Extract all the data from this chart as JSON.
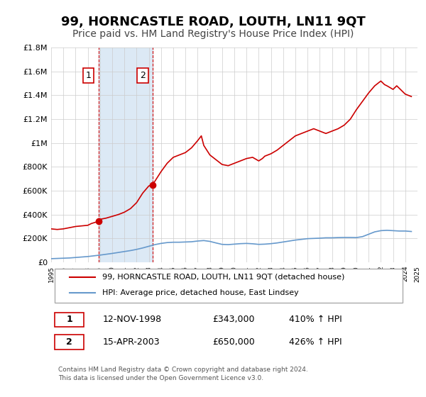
{
  "title": "99, HORNCASTLE ROAD, LOUTH, LN11 9QT",
  "subtitle": "Price paid vs. HM Land Registry's House Price Index (HPI)",
  "title_fontsize": 13,
  "subtitle_fontsize": 10,
  "background_color": "#ffffff",
  "plot_bg_color": "#ffffff",
  "grid_color": "#cccccc",
  "red_line_color": "#cc0000",
  "blue_line_color": "#6699cc",
  "shade_color": "#dce9f5",
  "xmin": 1995,
  "xmax": 2025,
  "ymin": 0,
  "ymax": 1800000,
  "yticks": [
    0,
    200000,
    400000,
    600000,
    800000,
    1000000,
    1200000,
    1400000,
    1600000,
    1800000
  ],
  "ytick_labels": [
    "£0",
    "£200K",
    "£400K",
    "£600K",
    "£800K",
    "£1M",
    "£1.2M",
    "£1.4M",
    "£1.6M",
    "£1.8M"
  ],
  "sale1_x": 1998.87,
  "sale1_y": 343000,
  "sale1_label": "1",
  "sale2_x": 2003.29,
  "sale2_y": 650000,
  "sale2_label": "2",
  "legend_line1": "99, HORNCASTLE ROAD, LOUTH, LN11 9QT (detached house)",
  "legend_line2": "HPI: Average price, detached house, East Lindsey",
  "table_row1_num": "1",
  "table_row1_date": "12-NOV-1998",
  "table_row1_price": "£343,000",
  "table_row1_hpi": "410% ↑ HPI",
  "table_row2_num": "2",
  "table_row2_date": "15-APR-2003",
  "table_row2_price": "£650,000",
  "table_row2_hpi": "426% ↑ HPI",
  "footer": "Contains HM Land Registry data © Crown copyright and database right 2024.\nThis data is licensed under the Open Government Licence v3.0.",
  "hpi_x": [
    1995,
    1995.5,
    1996,
    1996.5,
    1997,
    1997.5,
    1998,
    1998.5,
    1999,
    1999.5,
    2000,
    2000.5,
    2001,
    2001.5,
    2002,
    2002.5,
    2003,
    2003.5,
    2004,
    2004.5,
    2005,
    2005.5,
    2006,
    2006.5,
    2007,
    2007.5,
    2008,
    2008.5,
    2009,
    2009.5,
    2010,
    2010.5,
    2011,
    2011.5,
    2012,
    2012.5,
    2013,
    2013.5,
    2014,
    2014.5,
    2015,
    2015.5,
    2016,
    2016.5,
    2017,
    2017.5,
    2018,
    2018.5,
    2019,
    2019.5,
    2020,
    2020.5,
    2021,
    2021.5,
    2022,
    2022.5,
    2023,
    2023.5,
    2024,
    2024.5
  ],
  "hpi_y": [
    30000,
    32000,
    34000,
    36000,
    40000,
    44000,
    48000,
    54000,
    60000,
    67000,
    74000,
    82000,
    90000,
    98000,
    108000,
    120000,
    134000,
    148000,
    158000,
    165000,
    168000,
    168000,
    170000,
    172000,
    178000,
    182000,
    175000,
    162000,
    150000,
    148000,
    152000,
    156000,
    158000,
    155000,
    150000,
    152000,
    156000,
    162000,
    170000,
    178000,
    186000,
    192000,
    198000,
    200000,
    202000,
    205000,
    205000,
    207000,
    208000,
    208000,
    207000,
    215000,
    235000,
    255000,
    265000,
    268000,
    265000,
    262000,
    262000,
    258000
  ],
  "price_x": [
    1995,
    1995.5,
    1996,
    1996.5,
    1997,
    1997.5,
    1998,
    1998.3,
    1998.87,
    1999,
    1999.5,
    2000,
    2000.5,
    2001,
    2001.5,
    2002,
    2002.5,
    2003,
    2003.29,
    2003.5,
    2004,
    2004.5,
    2005,
    2005.5,
    2006,
    2006.5,
    2007,
    2007.3,
    2007.5,
    2008,
    2008.5,
    2009,
    2009.5,
    2010,
    2010.5,
    2011,
    2011.5,
    2012,
    2012.3,
    2012.5,
    2013,
    2013.5,
    2014,
    2014.5,
    2015,
    2015.5,
    2016,
    2016.5,
    2017,
    2017.5,
    2018,
    2018.5,
    2019,
    2019.5,
    2020,
    2020.5,
    2021,
    2021.5,
    2022,
    2022.3,
    2022.5,
    2023,
    2023.3,
    2023.5,
    2024,
    2024.5
  ],
  "price_y": [
    280000,
    275000,
    280000,
    290000,
    300000,
    305000,
    310000,
    325000,
    343000,
    360000,
    370000,
    385000,
    400000,
    420000,
    450000,
    500000,
    580000,
    640000,
    650000,
    680000,
    760000,
    830000,
    880000,
    900000,
    920000,
    960000,
    1020000,
    1060000,
    980000,
    900000,
    860000,
    820000,
    810000,
    830000,
    850000,
    870000,
    880000,
    850000,
    870000,
    890000,
    910000,
    940000,
    980000,
    1020000,
    1060000,
    1080000,
    1100000,
    1120000,
    1100000,
    1080000,
    1100000,
    1120000,
    1150000,
    1200000,
    1280000,
    1350000,
    1420000,
    1480000,
    1520000,
    1490000,
    1480000,
    1450000,
    1480000,
    1460000,
    1410000,
    1390000
  ]
}
